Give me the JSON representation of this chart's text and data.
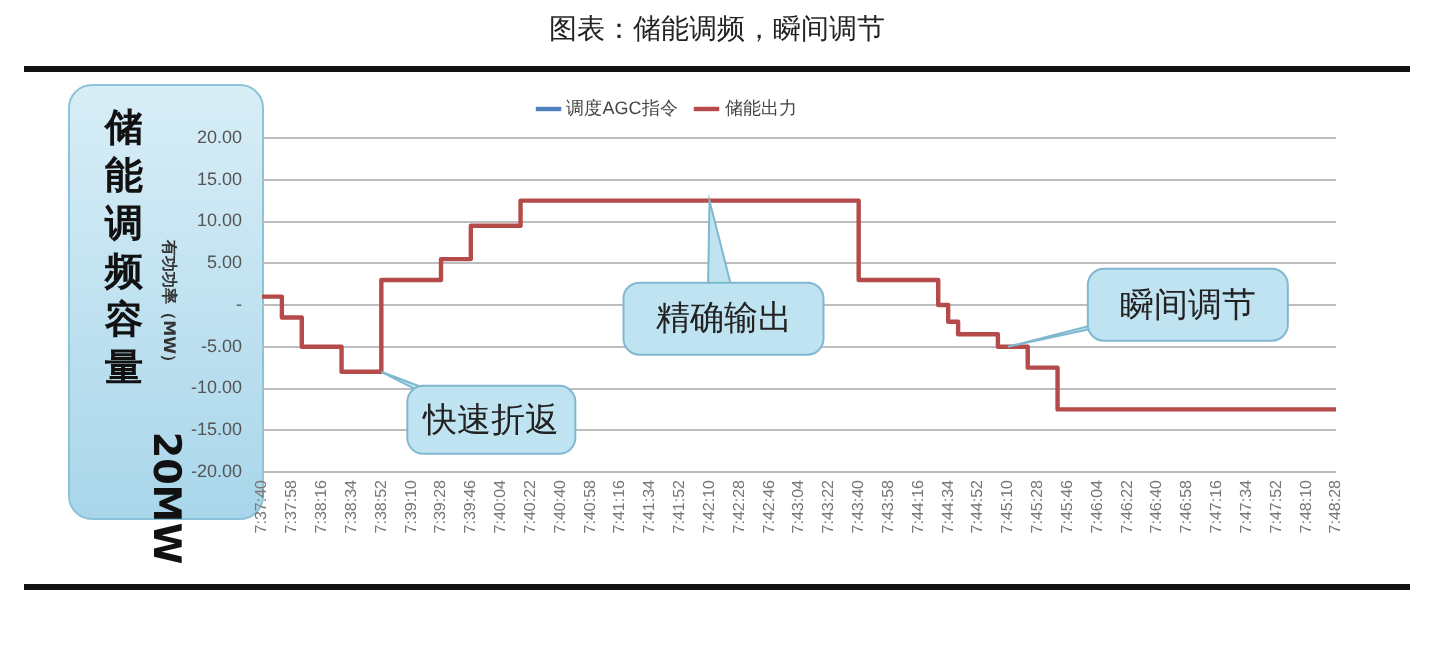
{
  "chart_data": {
    "type": "step",
    "title": "图表：储能调频，瞬间调节",
    "ylabel": "有功功率（MW）",
    "categories": [
      "7:37:40",
      null,
      null,
      "7:37:58",
      null,
      null,
      "7:38:16",
      null,
      null,
      "7:38:34",
      null,
      null,
      "7:38:52",
      null,
      null,
      "7:39:10",
      null,
      null,
      "7:39:28",
      null,
      null,
      "7:39:46",
      null,
      null,
      "7:40:04",
      null,
      null,
      "7:40:22",
      null,
      null,
      "7:40:40",
      null,
      null,
      "7:40:58",
      null,
      null,
      "7:41:16",
      null,
      null,
      "7:41:34",
      null,
      null,
      "7:41:52",
      null,
      null,
      "7:42:10",
      null,
      null,
      "7:42:28",
      null,
      null,
      "7:42:46",
      null,
      null,
      "7:43:04",
      null,
      null,
      "7:43:22",
      null,
      null,
      "7:43:40",
      null,
      null,
      "7:43:58",
      null,
      null,
      "7:44:16",
      null,
      null,
      "7:44:34",
      null,
      null,
      "7:44:52",
      null,
      null,
      "7:45:10",
      null,
      null,
      "7:45:28",
      null,
      null,
      "7:45:46",
      null,
      null,
      "7:46:04",
      null,
      null,
      "7:46:22",
      null,
      null,
      "7:46:40",
      null,
      null,
      "7:46:58",
      null,
      null,
      "7:47:16",
      null,
      null,
      "7:47:34",
      null,
      null,
      "7:47:52",
      null,
      null,
      "7:48:10",
      null,
      null,
      "7:48:28"
    ],
    "series": [
      {
        "name": "调度AGC指令",
        "color": "#4f81bd",
        "values": [
          null,
          null,
          null,
          null,
          null,
          null,
          null,
          null,
          null,
          null,
          null,
          null,
          null,
          null,
          null,
          null,
          null,
          null,
          null,
          null,
          null,
          null,
          null,
          null,
          null,
          null,
          null,
          null,
          null,
          null,
          null,
          null,
          null,
          null,
          null,
          null,
          null,
          null,
          null,
          null,
          null,
          null,
          null,
          null,
          null,
          null,
          null,
          null,
          null,
          null,
          null,
          null,
          null,
          null,
          null,
          null,
          null,
          null,
          null,
          null,
          null,
          null,
          null,
          null,
          null,
          null,
          null,
          null,
          null,
          null,
          null,
          null,
          null,
          null,
          null,
          null,
          null,
          null,
          null,
          null,
          null,
          null,
          null,
          null,
          null,
          null,
          null,
          null,
          null,
          null,
          null,
          null,
          null,
          null,
          null,
          null,
          null,
          null,
          null,
          null,
          null,
          null,
          null,
          null,
          null,
          null,
          null,
          null,
          null
        ]
      },
      {
        "name": "储能出力",
        "color": "#b54a4a",
        "values": [
          1,
          1,
          -1.5,
          -1.5,
          -5,
          -5,
          -5,
          -5,
          -8,
          -8,
          -8,
          -8,
          3,
          3,
          3,
          3,
          3,
          3,
          5.5,
          5.5,
          5.5,
          9.5,
          9.5,
          9.5,
          9.5,
          9.5,
          12.5,
          12.5,
          12.5,
          12.5,
          12.5,
          12.5,
          12.5,
          12.5,
          12.5,
          12.5,
          12.5,
          12.5,
          12.5,
          12.5,
          12.5,
          12.5,
          12.5,
          12.5,
          12.5,
          12.5,
          12.5,
          12.5,
          12.5,
          12.5,
          12.5,
          12.5,
          12.5,
          12.5,
          12.5,
          12.5,
          12.5,
          12.5,
          12.5,
          12.5,
          3,
          3,
          3,
          3,
          3,
          3,
          3,
          3,
          0,
          -2,
          -3.5,
          -3.5,
          -3.5,
          -3.5,
          -5,
          -5,
          -5,
          -7.5,
          -7.5,
          -7.5,
          -12.5,
          -12.5,
          -12.5,
          -12.5,
          -12.5,
          -12.5,
          -12.5,
          -12.5,
          -12.5,
          -12.5,
          -12.5,
          -12.5,
          -12.5,
          -12.5,
          -12.5,
          -12.5,
          -12.5,
          -12.5,
          -12.5,
          -12.5,
          -12.5,
          -12.5,
          -12.5,
          -12.5,
          -12.5,
          -12.5,
          -12.5,
          -12.5,
          -12.5
        ]
      }
    ],
    "ylim": [
      -20,
      20
    ],
    "yticks": [
      {
        "value": -20,
        "label": "-20.00"
      },
      {
        "value": -15,
        "label": "-15.00"
      },
      {
        "value": -10,
        "label": "-10.00"
      },
      {
        "value": -5,
        "label": "-5.00"
      },
      {
        "value": 0,
        "label": "-"
      },
      {
        "value": 5,
        "label": "5.00"
      },
      {
        "value": 10,
        "label": "10.00"
      },
      {
        "value": 15,
        "label": "15.00"
      },
      {
        "value": 20,
        "label": "20.00"
      }
    ],
    "grid": "y",
    "legend": "top",
    "marker": "none",
    "line_style": "solid",
    "annotations": [
      "储能调频容量 20MW",
      {
        "text": "快速折返",
        "x": "7:38:52",
        "y": -8
      },
      {
        "text": "精确输出",
        "x": "7:42:10",
        "y": 12.5
      },
      {
        "text": "瞬间调节",
        "x": "7:45:10",
        "y": -5
      }
    ]
  }
}
